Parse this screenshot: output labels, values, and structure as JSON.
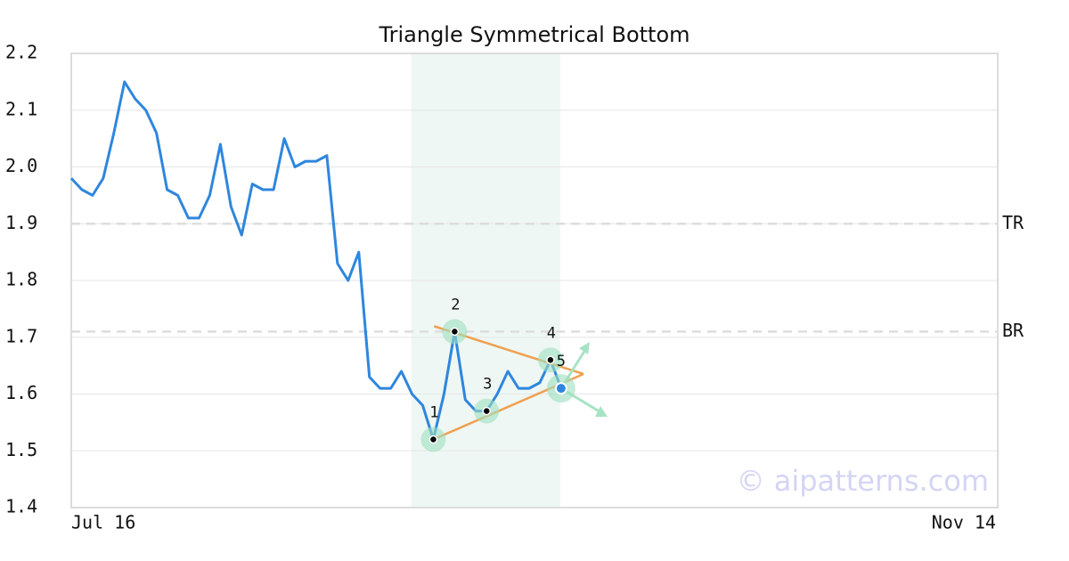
{
  "chart_data": {
    "type": "line",
    "title": "Triangle Symmetrical Bottom",
    "categories": [
      "Jul 16",
      null,
      null,
      null,
      null,
      null,
      null,
      null,
      null,
      null,
      null,
      null,
      null,
      null,
      null,
      null,
      null,
      null,
      null,
      null,
      null,
      null,
      null,
      null,
      null,
      null,
      null,
      null,
      null,
      null,
      null,
      null,
      null,
      null,
      null,
      null,
      null,
      null,
      null,
      null,
      null,
      null,
      null,
      null,
      null,
      null,
      null,
      null,
      null,
      null,
      null,
      null,
      null,
      null,
      null,
      null,
      null,
      null,
      null,
      null,
      null,
      null,
      null,
      null,
      null,
      null,
      null,
      null,
      null,
      null,
      null,
      null,
      null,
      null,
      null,
      null,
      null,
      null,
      null,
      null,
      null,
      null,
      null,
      null,
      null,
      null,
      null,
      "Nov 14"
    ],
    "series": [
      {
        "color": "#2e86de",
        "values": [
          1.98,
          1.96,
          1.95,
          1.98,
          2.06,
          2.15,
          2.12,
          2.1,
          2.06,
          1.96,
          1.95,
          1.91,
          1.91,
          1.95,
          2.04,
          1.93,
          1.88,
          1.97,
          1.96,
          1.96,
          2.05,
          2.0,
          2.01,
          2.01,
          2.02,
          1.83,
          1.8,
          1.85,
          1.63,
          1.61,
          1.61,
          1.64,
          1.6,
          1.58,
          1.52,
          1.6,
          1.71,
          1.59,
          1.57,
          1.57,
          1.6,
          1.64,
          1.61,
          1.61,
          1.62,
          1.66,
          1.61,
          null,
          null,
          null,
          null,
          null,
          null,
          null,
          null,
          null,
          null,
          null,
          null,
          null,
          null,
          null,
          null,
          null,
          null,
          null,
          null,
          null,
          null,
          null,
          null,
          null,
          null,
          null,
          null,
          null,
          null,
          null,
          null,
          null,
          null,
          null,
          null,
          null,
          null,
          null,
          null,
          null
        ]
      }
    ],
    "ylim": [
      1.4,
      2.2
    ],
    "yticks": [
      1.4,
      1.5,
      1.6,
      1.7,
      1.8,
      1.9,
      {
        "value": 2,
        "label": "2.0"
      },
      2.1,
      2.2
    ],
    "grid": true,
    "levels": [
      {
        "label": "TR",
        "value": 1.9
      },
      {
        "label": "BR",
        "value": 1.71
      }
    ],
    "pattern_points": [
      {
        "label": "1",
        "value": 1.52
      },
      {
        "label": "2",
        "value": 1.71
      },
      {
        "label": "3",
        "value": 1.57
      },
      {
        "label": "4",
        "value": 1.66
      },
      {
        "label": "5",
        "value": 1.61
      }
    ],
    "watermark": "© aipatterns.com"
  }
}
